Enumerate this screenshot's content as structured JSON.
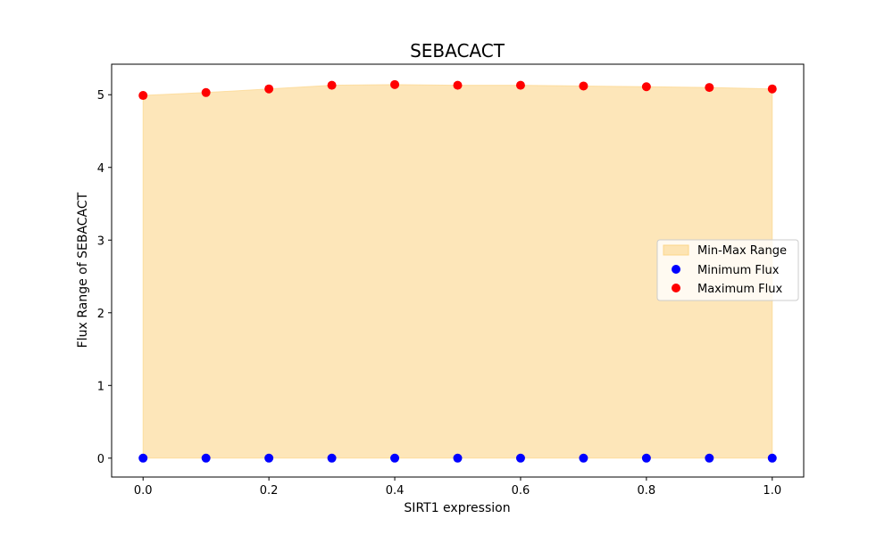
{
  "chart_data": {
    "type": "scatter",
    "title": "SEBACACT",
    "xlabel": "SIRT1 expression",
    "ylabel": "Flux Range of SEBACACT",
    "xlim": [
      -0.05,
      1.05
    ],
    "ylim": [
      -0.26,
      5.42
    ],
    "x_ticks": [
      0.0,
      0.2,
      0.4,
      0.6,
      0.8,
      1.0
    ],
    "x_tick_labels": [
      "0.0",
      "0.2",
      "0.4",
      "0.6",
      "0.8",
      "1.0"
    ],
    "y_ticks": [
      0,
      1,
      2,
      3,
      4,
      5
    ],
    "y_tick_labels": [
      "0",
      "1",
      "2",
      "3",
      "4",
      "5"
    ],
    "x": [
      0.0,
      0.1,
      0.2,
      0.3,
      0.4,
      0.5,
      0.6,
      0.7,
      0.8,
      0.9,
      1.0
    ],
    "series": [
      {
        "name": "Minimum Flux",
        "color": "#0000ff",
        "values": [
          0,
          0,
          0,
          0,
          0,
          0,
          0,
          0,
          0,
          0,
          0
        ]
      },
      {
        "name": "Maximum Flux",
        "color": "#ff0000",
        "values": [
          4.99,
          5.03,
          5.08,
          5.13,
          5.14,
          5.13,
          5.13,
          5.12,
          5.11,
          5.1,
          5.08
        ]
      }
    ],
    "fill": {
      "name": "Min-Max Range",
      "color": "#fcd68a",
      "opacity": 0.6
    },
    "grid": false,
    "legend_position": "center-right"
  }
}
